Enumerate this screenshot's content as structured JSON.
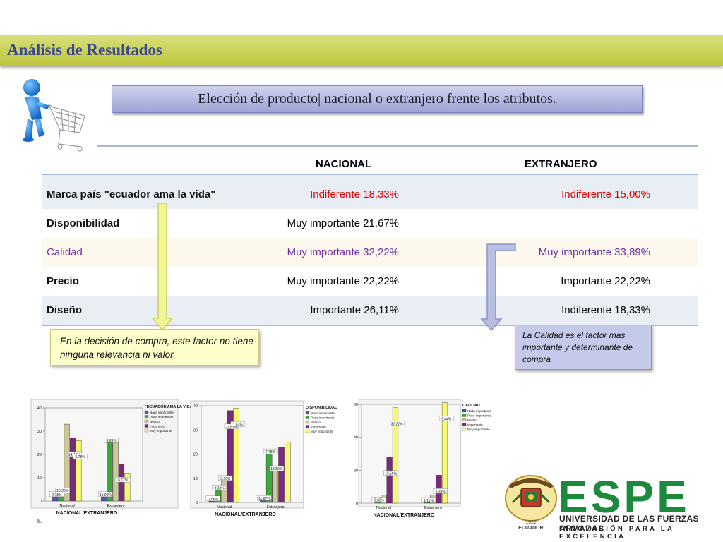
{
  "header": {
    "title": "Análisis de Resultados"
  },
  "subtitle": "Elección de producto| nacional o extranjero frente los atributos.",
  "table": {
    "columns": [
      "NACIONAL",
      "EXTRANJERO"
    ],
    "rows": [
      {
        "label": "Marca país \"ecuador ama la vida\"",
        "nacional": "Indiferente  18,33%",
        "extranjero": "Indiferente  15,00%"
      },
      {
        "label": "Disponibilidad",
        "nacional": "Muy importante  21,67%",
        "extranjero": ""
      },
      {
        "label": "Calidad",
        "nacional": "Muy importante  32,22%",
        "extranjero": "Muy importante  33,89%"
      },
      {
        "label": "Precio",
        "nacional": "Muy importante  22,22%",
        "extranjero": "Importante  22,22%"
      },
      {
        "label": "Diseño",
        "nacional": "Importante  26,11%",
        "extranjero": "Indiferente  18,33%"
      }
    ]
  },
  "notes": {
    "left": "En la decisión de compra, este factor no tiene ninguna relevancia  ni valor.",
    "right": "La Calidad es el factor mas importante y determinante de compra"
  },
  "legend_items": [
    "Nada importante",
    "Poco importante",
    "Neutro",
    "Importante",
    "Muy importante"
  ],
  "colors": {
    "series": [
      "#4a5aa8",
      "#3aa83a",
      "#cdc79a",
      "#7b2a7b",
      "#f8f870"
    ],
    "accent": "#3c4690",
    "red": "#e00000",
    "purple": "#7030a0",
    "espe_green": "#1c8a3c"
  },
  "chart_data": [
    {
      "type": "bar",
      "title": "\"ECUADOR AMA LA VIDA\"",
      "xlabel": "NACIONAL/EXTRANJERO",
      "categories": [
        "Nacional",
        "Extranjero"
      ],
      "ylim": [
        0,
        40
      ],
      "yticks": [
        "0",
        "10",
        "20",
        "30",
        "40"
      ],
      "series": [
        {
          "name": "Nada importante",
          "values": [
            2.78,
            2.78
          ]
        },
        {
          "name": "Poco importante",
          "values": [
            4.5,
            26
          ]
        },
        {
          "name": "Neutro",
          "values": [
            33,
            27
          ]
        },
        {
          "name": "Importante",
          "values": [
            27,
            16
          ]
        },
        {
          "name": "Muy importante",
          "values": [
            26,
            12
          ]
        }
      ],
      "data_labels": [
        "2,78%",
        "18,33%",
        "14,44%",
        "2,78%",
        "15,00%",
        "8,89%",
        "6,67%"
      ]
    },
    {
      "type": "bar",
      "title": "DISPONIBILIDAD",
      "xlabel": "NACIONAL/EXTRANJERO",
      "categories": [
        "Nacional",
        "Extranjero"
      ],
      "ylim": [
        0,
        40
      ],
      "yticks": [
        "0",
        "10",
        "20",
        "30",
        "40"
      ],
      "series": [
        {
          "name": "Nada importante",
          "values": [
            1.5,
            1.7
          ]
        },
        {
          "name": "Poco importante",
          "values": [
            6,
            21
          ]
        },
        {
          "name": "Neutro",
          "values": [
            10,
            14
          ]
        },
        {
          "name": "Importante",
          "values": [
            38,
            23
          ]
        },
        {
          "name": "Muy importante",
          "values": [
            39,
            25
          ]
        }
      ],
      "data_labels": [
        "1,56%",
        "3,33%",
        "5,56%",
        "21,67%",
        "1,67%",
        "11,67%",
        "7,78%",
        "13,89%"
      ]
    },
    {
      "type": "bar",
      "title": "CALIDAD",
      "xlabel": "NACIONAL/EXTRANJERO",
      "categories": [
        "Nacional",
        "Extranjero"
      ],
      "ylim": [
        0,
        60
      ],
      "yticks": [
        "0",
        "20",
        "40",
        "60"
      ],
      "series": [
        {
          "name": "Nada importante",
          "values": [
            0,
            0
          ]
        },
        {
          "name": "Poco importante",
          "values": [
            2,
            1.1
          ]
        },
        {
          "name": "Neutro",
          "values": [
            5,
            5
          ]
        },
        {
          "name": "Importante",
          "values": [
            28,
            17
          ]
        },
        {
          "name": "Muy importante",
          "values": [
            58,
            61
          ]
        }
      ],
      "data_labels": [
        "3,33%",
        "15,56%",
        "32,22%",
        "1,11%",
        "3,33%",
        "9,44%",
        "33,89%"
      ]
    }
  ],
  "logo": {
    "name": "ESPE",
    "line1": "UNIVERSIDAD DE LAS FUERZAS ARMADAS",
    "line2": "INNOVACIÓN PARA LA EXCELENCIA",
    "seal_year": "1922",
    "seal_text": "ECUADOR"
  }
}
